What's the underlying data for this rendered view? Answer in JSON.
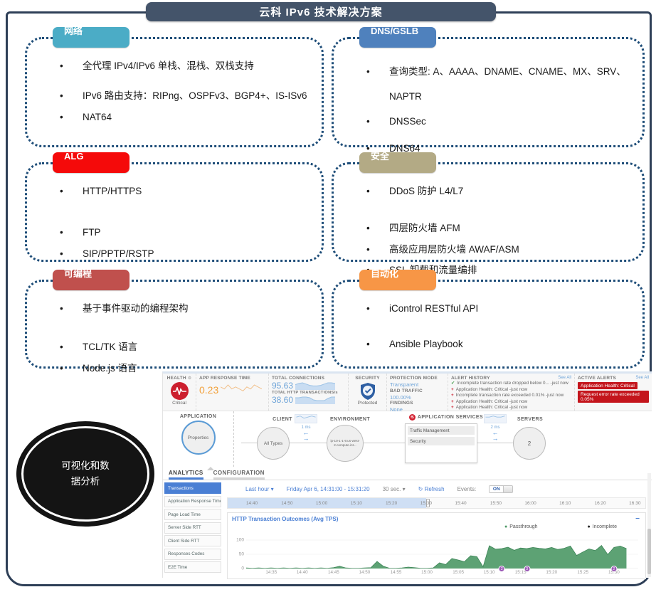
{
  "title": "云科 IPv6 技术解决方案",
  "boxes": [
    {
      "label": "网络",
      "color": "#4bacc6",
      "items": [
        "全代理 IPv4/IPv6 单栈、混栈、双栈支持",
        "IPv6 路由支持：RIPng、OSPFv3、BGP4+、IS-ISv6",
        "NAT64"
      ]
    },
    {
      "label": "DNS/GSLB",
      "color": "#4f81bd",
      "items": [
        "查询类型: A、AAAA、DNAME、CNAME、MX、SRV、NAPTR",
        "DNSSec",
        "DNS64"
      ]
    },
    {
      "label": "ALG",
      "color": "#f50a0a",
      "items": [
        "HTTP/HTTPS",
        "FTP",
        "SIP/PPTP/RSTP"
      ]
    },
    {
      "label": "安全",
      "color": "#b3aa85",
      "items": [
        "DDoS 防护 L4/L7",
        "四层防火墙 AFM",
        "高级应用层防火墙 AWAF/ASM",
        "SSL 卸载和流量编排"
      ]
    },
    {
      "label": "可编程",
      "color": "#c0504d",
      "items": [
        "基于事件驱动的编程架构",
        "TCL/TK 语言",
        "Node.js 语言"
      ]
    },
    {
      "label": "自动化",
      "color": "#f79646",
      "items": [
        "iControl RESTful API",
        "Ansible Playbook"
      ]
    }
  ],
  "ellipse": {
    "line1": "可视化和数",
    "line2": "据分析"
  },
  "dashboard": {
    "health": {
      "label": "HEALTH",
      "status": "Critical"
    },
    "app_response": {
      "label": "APP RESPONSE TIME",
      "value": "0.23"
    },
    "connections": {
      "label": "TOTAL CONNECTIONS",
      "value": "95.63"
    },
    "transactions": {
      "label": "TOTAL HTTP TRANSACTIONS/s",
      "value": "38.60"
    },
    "security": {
      "label": "SECURITY",
      "status": "Protected"
    },
    "protection": {
      "mode_label": "PROTECTION MODE",
      "mode": "Transparent",
      "bad_label": "BAD TRAFFIC",
      "bad": "100.00%",
      "findings_label": "FINDINGS",
      "findings": "None"
    },
    "alert_history": {
      "title": "ALERT HISTORY",
      "see_all": "See All",
      "items": [
        {
          "icon": "check",
          "text": "Incomplete transaction rate dropped below 0... -just now"
        },
        {
          "icon": "alert",
          "text": "Application Health: Critical -just now"
        },
        {
          "icon": "alert",
          "text": "Incomplete transaction rate exceeded 0.01% -just now"
        },
        {
          "icon": "alert",
          "text": "Application Health: Critical -just now"
        },
        {
          "icon": "alert",
          "text": "Application Health: Critical -just now"
        }
      ]
    },
    "active_alerts": {
      "title": "ACTIVE ALERTS",
      "see_all": "See All",
      "items": [
        "Application Health: Critical",
        "Request error rate exceeded 0.05%"
      ]
    },
    "topology": {
      "application_label": "APPLICATION",
      "app_node": "Properties",
      "client_label": "CLIENT",
      "client_node": "All Types",
      "client_latency": "1 ms",
      "environment_label": "ENVIRONMENT",
      "env_node": "ip-10-1-1-9.us-west-2.compute.int...",
      "services_label": "APPLICATION SERVICES",
      "services_logo": "f5",
      "services": [
        "Traffic Management",
        "Security"
      ],
      "servers_label": "SERVERS",
      "server_latency": "2 ms",
      "server_count": "2"
    },
    "tabs": [
      "ANALYTICS",
      "CONFIGURATION"
    ],
    "sidebar": [
      "Transactions",
      "Application Response Time",
      "Page Load Time",
      "Server Side RTT",
      "Client Side RTT",
      "Responses Codes",
      "E2E Time"
    ],
    "controls": {
      "range": "Last hour",
      "date": "Friday Apr 6, 14:31:00 - 15:31:20",
      "interval": "30 sec.",
      "refresh": "Refresh",
      "events_label": "Events:",
      "events_state": "ON"
    },
    "timeline_ticks": [
      "14:40",
      "14:50",
      "15:00",
      "15:10",
      "15:20",
      "15:30",
      "15:40",
      "15:50",
      "16:00",
      "16:10",
      "16:20",
      "16:30"
    ],
    "sparklines": {
      "app_response": [
        4,
        3,
        5,
        3,
        4,
        3,
        2,
        4,
        3,
        5,
        4,
        3
      ],
      "connections": [
        6,
        8,
        9,
        7,
        5,
        4,
        4,
        5,
        7,
        9,
        9,
        8
      ],
      "transactions": [
        7,
        7,
        8,
        8,
        7,
        4,
        3,
        3,
        3,
        6,
        8,
        8
      ],
      "client": [
        4,
        5,
        3,
        4,
        5,
        4
      ],
      "server": [
        4,
        4,
        5,
        4,
        4,
        5
      ]
    }
  },
  "chart_data": {
    "type": "area",
    "title": "HTTP Transaction Outcomes (Avg TPS)",
    "legend": [
      {
        "name": "Passthrough",
        "color": "#4f9a68"
      },
      {
        "name": "Incomplete",
        "color": "#222222"
      }
    ],
    "x_start": "14:31",
    "x_end": "15:32",
    "xticks": [
      "14:35",
      "14:40",
      "14:45",
      "14:50",
      "14:55",
      "15:00",
      "15:05",
      "15:10",
      "15:15",
      "15:20",
      "15:25",
      "15:30"
    ],
    "yticks": [
      0,
      50,
      100
    ],
    "ylim": [
      0,
      110
    ],
    "grid": true,
    "legend_position": "top-right",
    "series": [
      {
        "name": "Passthrough",
        "values": [
          2,
          1,
          2,
          1,
          2,
          1,
          2,
          1,
          2,
          1,
          2,
          1,
          2,
          1,
          3,
          8,
          2,
          1,
          1,
          2,
          3,
          25,
          8,
          1,
          1,
          2,
          5,
          3,
          1,
          1,
          2,
          20,
          14,
          35,
          30,
          24,
          45,
          42,
          6,
          80,
          68,
          70,
          75,
          64,
          72,
          70,
          74,
          71,
          69,
          74,
          67,
          71,
          79,
          46,
          58,
          69,
          63,
          81,
          49,
          74,
          79,
          70
        ]
      },
      {
        "name": "Incomplete",
        "values": [
          0,
          0,
          0,
          0,
          0,
          0,
          0,
          0,
          0,
          0,
          0,
          0,
          0,
          0,
          0,
          0,
          0,
          0,
          0,
          0,
          0,
          0,
          0,
          0,
          0,
          0,
          0,
          0,
          0,
          0,
          0,
          0,
          0,
          0,
          0,
          0,
          0,
          0,
          0,
          0,
          0,
          0,
          0,
          0,
          0,
          0,
          0,
          0,
          0,
          0,
          0,
          0,
          0,
          0,
          0,
          0,
          0,
          0,
          0,
          0,
          0,
          0
        ]
      }
    ],
    "events": [
      {
        "time": "15:12",
        "count": "2"
      },
      {
        "time": "15:16",
        "count": "3"
      },
      {
        "time": "15:30",
        "count": "2"
      }
    ],
    "collapse_icon": "−"
  },
  "icons": {
    "gear": "⚙",
    "refresh": "↻",
    "caret": "▾",
    "check": "✔",
    "alert_plus": "+",
    "dot": "●",
    "arrow_left": "←",
    "arrow_right": "→"
  }
}
